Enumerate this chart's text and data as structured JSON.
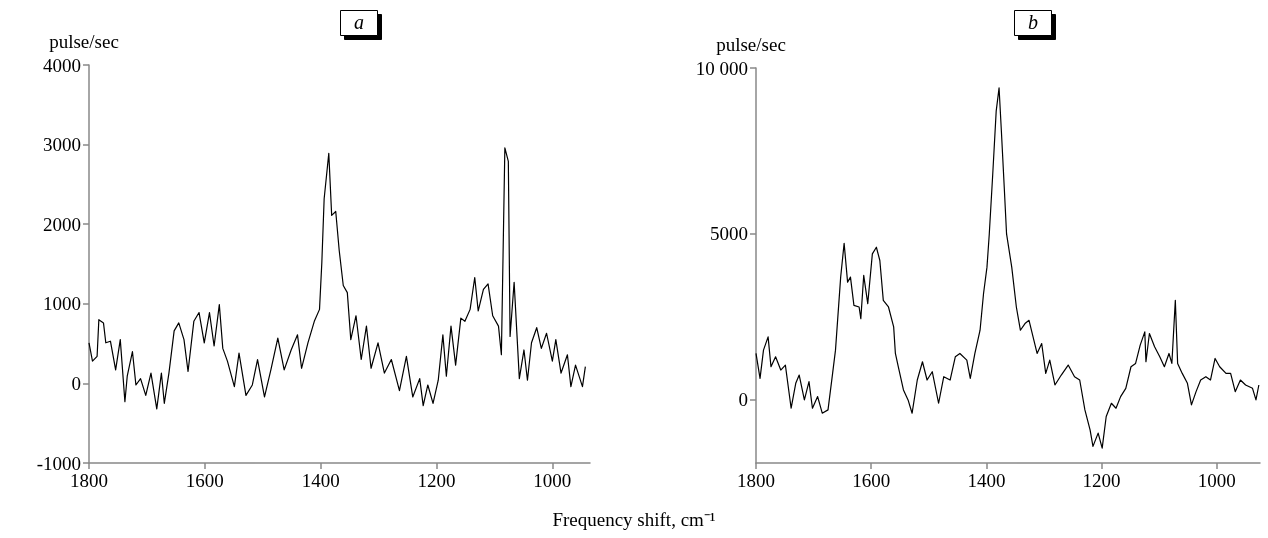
{
  "chart_data": [
    {
      "type": "line",
      "title": "a",
      "ylabel": "pulse/sec",
      "xlabel": "Frequency shift, cm⁻¹",
      "xlim": [
        1800,
        935
      ],
      "xticks": [
        1800,
        1600,
        1400,
        1200,
        1000
      ],
      "ylim": [
        -1000,
        4000
      ],
      "yticks": [
        -1000,
        0,
        1000,
        2000,
        3000,
        4000
      ],
      "series": [
        {
          "color": "#000000",
          "x": [
            1800,
            1794,
            1786,
            1783,
            1775,
            1771,
            1763,
            1754,
            1746,
            1738,
            1734,
            1725,
            1719,
            1711,
            1702,
            1693,
            1683,
            1675,
            1670,
            1662,
            1653,
            1645,
            1636,
            1629,
            1619,
            1610,
            1601,
            1592,
            1584,
            1575,
            1569,
            1561,
            1549,
            1541,
            1529,
            1518,
            1509,
            1497,
            1486,
            1474,
            1463,
            1451,
            1440,
            1433,
            1422,
            1411,
            1402,
            1398,
            1394,
            1386,
            1381,
            1374,
            1368,
            1361,
            1354,
            1348,
            1339,
            1330,
            1321,
            1313,
            1301,
            1290,
            1278,
            1264,
            1252,
            1241,
            1229,
            1223,
            1215,
            1206,
            1197,
            1189,
            1183,
            1175,
            1167,
            1158,
            1151,
            1142,
            1134,
            1128,
            1119,
            1111,
            1103,
            1093,
            1088,
            1082,
            1076,
            1073,
            1066,
            1057,
            1049,
            1043,
            1036,
            1027,
            1019,
            1010,
            1000,
            994,
            985,
            974,
            968,
            960,
            948,
            943
          ],
          "values": [
            510,
            280,
            340,
            800,
            760,
            510,
            530,
            170,
            550,
            -230,
            90,
            400,
            -20,
            60,
            -150,
            130,
            -320,
            130,
            -250,
            130,
            660,
            760,
            550,
            150,
            780,
            890,
            510,
            890,
            470,
            990,
            440,
            280,
            -40,
            380,
            -150,
            -20,
            300,
            -170,
            170,
            570,
            170,
            420,
            610,
            190,
            510,
            780,
            930,
            1520,
            2320,
            2890,
            2110,
            2160,
            1670,
            1230,
            1140,
            550,
            850,
            300,
            720,
            190,
            510,
            130,
            300,
            -90,
            340,
            -170,
            60,
            -280,
            -20,
            -250,
            40,
            610,
            90,
            720,
            230,
            820,
            780,
            930,
            1330,
            910,
            1180,
            1250,
            850,
            720,
            360,
            2960,
            2790,
            590,
            1270,
            60,
            420,
            40,
            510,
            700,
            440,
            630,
            280,
            550,
            130,
            360,
            -40,
            230,
            -40,
            210
          ]
        }
      ]
    },
    {
      "type": "line",
      "title": "b",
      "ylabel": "pulse/sec",
      "xlim": [
        1800,
        925
      ],
      "xticks": [
        1800,
        1600,
        1400,
        1200,
        1000
      ],
      "ylim": [
        -1900,
        10000
      ],
      "yticks": [
        0,
        5000,
        {
          "value": 10000,
          "label": "10 000"
        }
      ],
      "series": [
        {
          "color": "#000000",
          "x": [
            1800,
            1793,
            1787,
            1779,
            1774,
            1766,
            1757,
            1749,
            1739,
            1731,
            1725,
            1716,
            1708,
            1702,
            1693,
            1685,
            1675,
            1667,
            1662,
            1653,
            1647,
            1641,
            1636,
            1630,
            1621,
            1618,
            1613,
            1606,
            1598,
            1591,
            1585,
            1579,
            1570,
            1561,
            1558,
            1553,
            1544,
            1536,
            1529,
            1520,
            1511,
            1503,
            1494,
            1483,
            1474,
            1463,
            1454,
            1446,
            1434,
            1428,
            1420,
            1411,
            1405,
            1399,
            1395,
            1389,
            1383,
            1378,
            1374,
            1369,
            1365,
            1356,
            1348,
            1341,
            1333,
            1326,
            1319,
            1312,
            1304,
            1297,
            1290,
            1281,
            1270,
            1258,
            1247,
            1238,
            1229,
            1220,
            1215,
            1206,
            1199,
            1192,
            1183,
            1175,
            1167,
            1158,
            1149,
            1141,
            1133,
            1125,
            1123,
            1117,
            1108,
            1099,
            1091,
            1083,
            1078,
            1072,
            1068,
            1060,
            1051,
            1044,
            1036,
            1028,
            1019,
            1011,
            1003,
            995,
            984,
            976,
            968,
            959,
            950,
            938,
            932,
            927
          ],
          "values": [
            1400,
            650,
            1500,
            1900,
            1000,
            1300,
            900,
            1050,
            -250,
            500,
            750,
            0,
            550,
            -250,
            100,
            -400,
            -300,
            800,
            1500,
            3700,
            4720,
            3550,
            3700,
            2850,
            2800,
            2450,
            3750,
            2900,
            4400,
            4600,
            4200,
            3000,
            2800,
            2200,
            1400,
            1000,
            300,
            0,
            -400,
            600,
            1150,
            600,
            850,
            -100,
            700,
            600,
            1300,
            1400,
            1200,
            650,
            1400,
            2100,
            3200,
            4000,
            5000,
            6800,
            8700,
            9400,
            8100,
            6400,
            5000,
            4000,
            2800,
            2100,
            2300,
            2400,
            1900,
            1400,
            1700,
            800,
            1200,
            450,
            750,
            1050,
            700,
            600,
            -300,
            -900,
            -1400,
            -1000,
            -1450,
            -500,
            -100,
            -250,
            100,
            350,
            1000,
            1100,
            1650,
            2050,
            1150,
            2000,
            1600,
            1300,
            1000,
            1400,
            1100,
            3000,
            1100,
            800,
            500,
            -150,
            250,
            600,
            700,
            600,
            1250,
            1000,
            800,
            800,
            250,
            600,
            450,
            350,
            0,
            450
          ]
        }
      ]
    }
  ]
}
